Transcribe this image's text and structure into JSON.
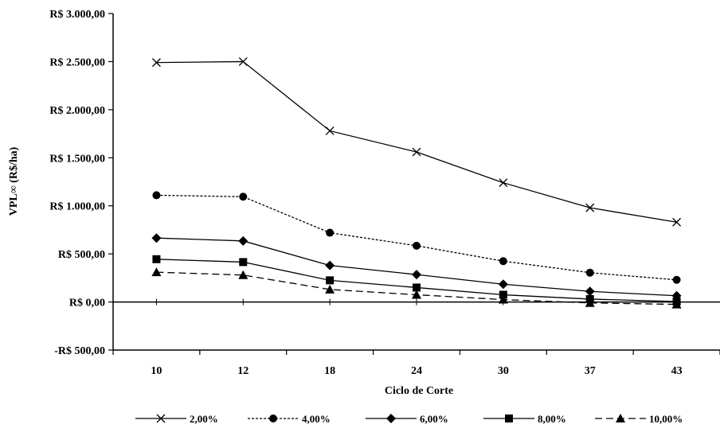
{
  "chart_data": {
    "type": "line",
    "title": "",
    "xlabel": "Ciclo de Corte",
    "ylabel": "VPL∞ (R$/ha)",
    "categories": [
      "10",
      "12",
      "18",
      "24",
      "30",
      "37",
      "43"
    ],
    "ylim": [
      -500,
      3000
    ],
    "yticks": [
      -500,
      0,
      500,
      1000,
      1500,
      2000,
      2500,
      3000
    ],
    "ytick_labels": [
      "-R$ 500,00",
      "R$ 0,00",
      "R$ 500,00",
      "R$ 1.000,00",
      "R$ 1.500,00",
      "R$ 2.000,00",
      "R$ 2.500,00",
      "R$ 3.000,00"
    ],
    "grid": false,
    "legend_position": "bottom",
    "series": [
      {
        "name": "2,00%",
        "marker": "x",
        "dash": "solid",
        "values": [
          2490,
          2500,
          1780,
          1560,
          1240,
          980,
          830
        ]
      },
      {
        "name": "4,00%",
        "marker": "circle",
        "dash": "dotted",
        "values": [
          1110,
          1095,
          720,
          585,
          425,
          305,
          230
        ]
      },
      {
        "name": "6,00%",
        "marker": "diamond",
        "dash": "solid",
        "values": [
          665,
          635,
          380,
          285,
          185,
          110,
          65
        ]
      },
      {
        "name": "8,00%",
        "marker": "square",
        "dash": "solid",
        "values": [
          445,
          415,
          225,
          150,
          75,
          30,
          5
        ]
      },
      {
        "name": "10,00%",
        "marker": "triangle",
        "dash": "dashed",
        "values": [
          310,
          280,
          130,
          75,
          25,
          -10,
          -25
        ]
      }
    ]
  }
}
